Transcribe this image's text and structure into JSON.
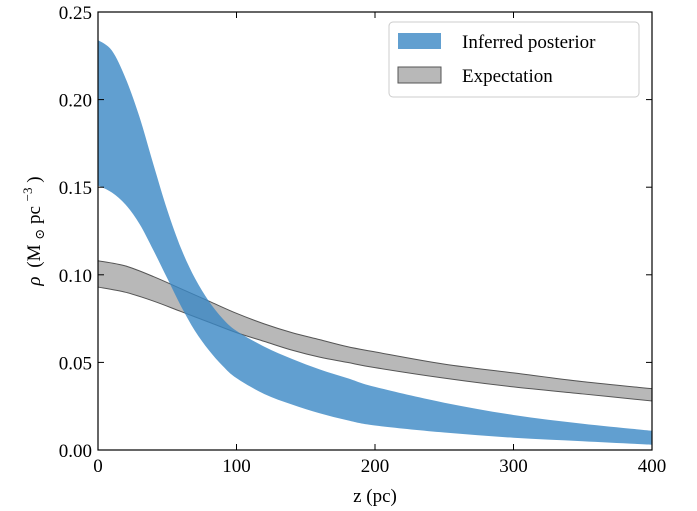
{
  "chart_data": {
    "type": "area",
    "title": "",
    "xlabel": "z (pc)",
    "ylabel": {
      "rho": "ρ",
      "unit_open": "(M",
      "sun": "⊙",
      "unit_mid": "pc",
      "exp": "−3",
      "unit_close": ")"
    },
    "xlim": [
      0,
      400
    ],
    "ylim": [
      0,
      0.25
    ],
    "xticks": [
      0,
      100,
      200,
      300,
      400
    ],
    "xtick_labels": [
      "0",
      "100",
      "200",
      "300",
      "400"
    ],
    "yticks": [
      0,
      0.05,
      0.1,
      0.15,
      0.2,
      0.25
    ],
    "ytick_labels": [
      "0.00",
      "0.05",
      "0.10",
      "0.15",
      "0.20",
      "0.25"
    ],
    "grid": false,
    "legend_position": "top-right",
    "series": [
      {
        "name": "Inferred posterior",
        "color": "#3a87c4",
        "x": [
          0,
          10,
          20,
          30,
          40,
          50,
          60,
          70,
          80,
          90,
          100,
          120,
          140,
          160,
          180,
          200,
          250,
          300,
          350,
          400
        ],
        "upper": [
          0.234,
          0.228,
          0.212,
          0.19,
          0.163,
          0.137,
          0.115,
          0.098,
          0.085,
          0.075,
          0.068,
          0.059,
          0.052,
          0.046,
          0.041,
          0.036,
          0.027,
          0.02,
          0.015,
          0.011
        ],
        "lower": [
          0.151,
          0.147,
          0.14,
          0.129,
          0.114,
          0.098,
          0.082,
          0.068,
          0.057,
          0.048,
          0.041,
          0.032,
          0.026,
          0.021,
          0.017,
          0.014,
          0.01,
          0.007,
          0.005,
          0.003
        ]
      },
      {
        "name": "Expectation",
        "color": "#9a9a9a",
        "x": [
          0,
          20,
          40,
          60,
          80,
          100,
          120,
          140,
          160,
          180,
          200,
          250,
          300,
          350,
          400
        ],
        "upper": [
          0.108,
          0.105,
          0.099,
          0.092,
          0.085,
          0.078,
          0.072,
          0.067,
          0.063,
          0.059,
          0.056,
          0.049,
          0.044,
          0.039,
          0.035
        ],
        "lower": [
          0.093,
          0.09,
          0.085,
          0.079,
          0.073,
          0.067,
          0.062,
          0.057,
          0.053,
          0.05,
          0.047,
          0.041,
          0.036,
          0.032,
          0.028
        ]
      }
    ]
  }
}
